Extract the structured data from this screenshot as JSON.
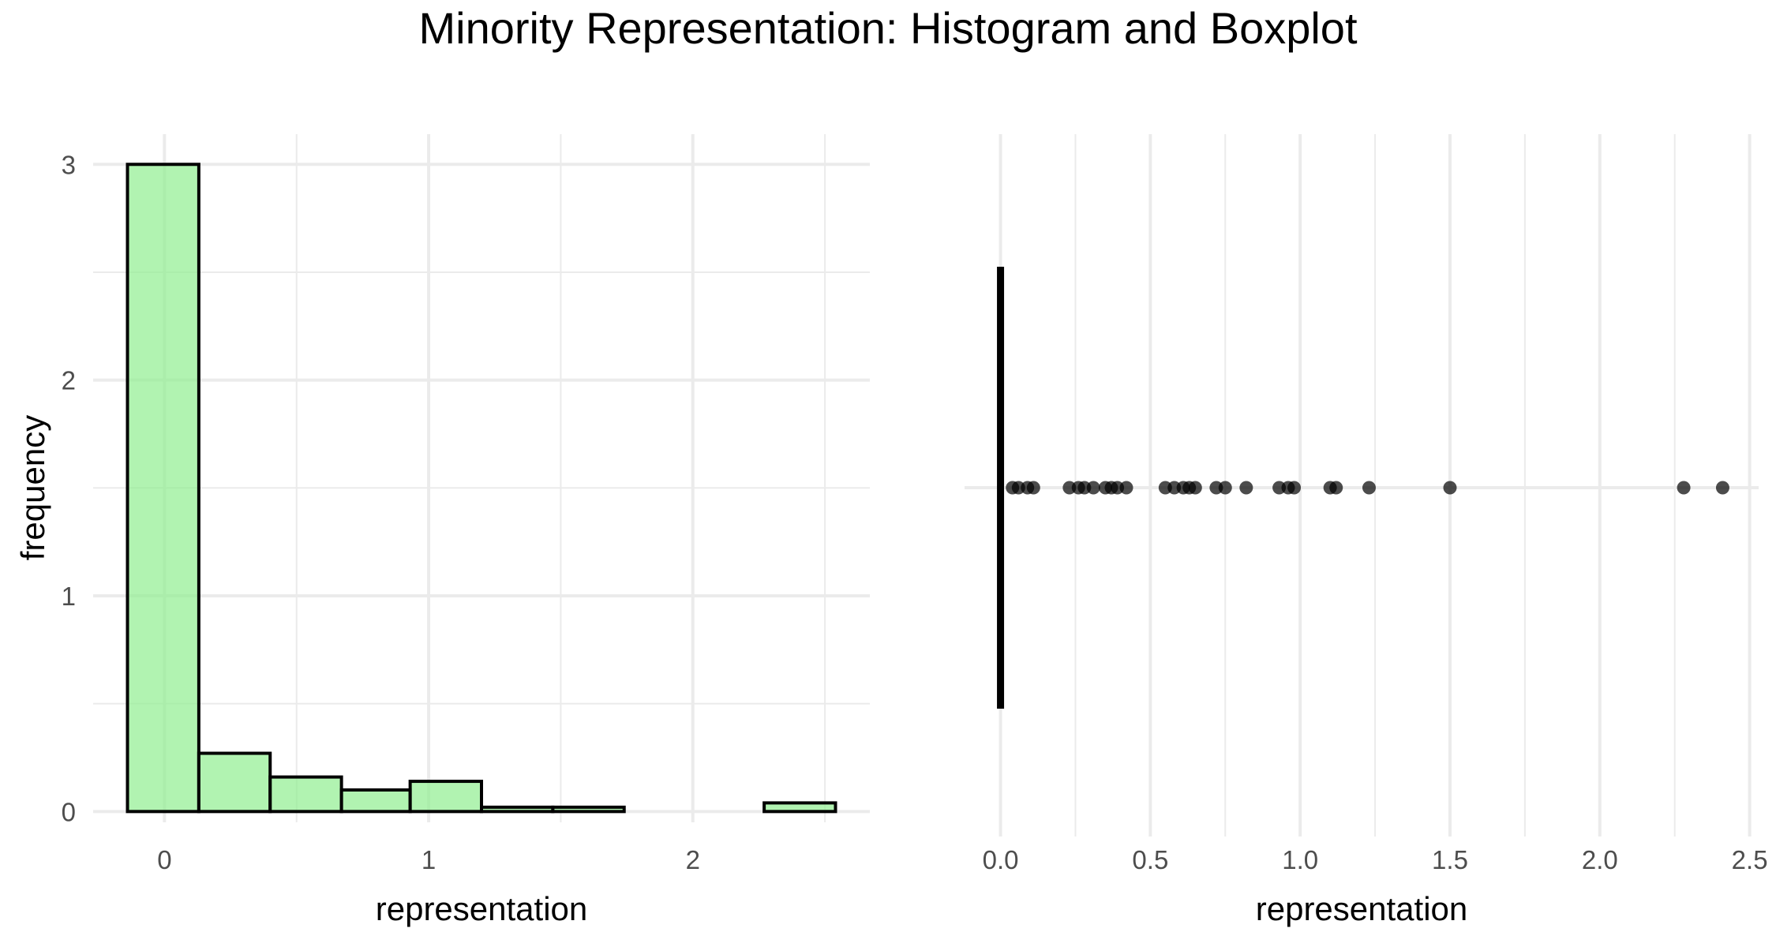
{
  "title": "Minority Representation: Histogram and Boxplot",
  "chart_data": [
    {
      "type": "bar",
      "subtype": "histogram",
      "xlabel": "representation",
      "ylabel": "frequency",
      "xlim": [
        -0.27,
        2.67
      ],
      "ylim": [
        -0.05,
        3.14
      ],
      "xticks": [
        "0",
        "1",
        "2"
      ],
      "xtick_values": [
        0,
        1,
        2
      ],
      "yticks": [
        "0",
        "1",
        "2",
        "3"
      ],
      "ytick_values": [
        0,
        1,
        2,
        3
      ],
      "bins": [
        {
          "x0": -0.14,
          "x1": 0.13,
          "value": 3.0
        },
        {
          "x0": 0.13,
          "x1": 0.4,
          "value": 0.27
        },
        {
          "x0": 0.4,
          "x1": 0.67,
          "value": 0.16
        },
        {
          "x0": 0.67,
          "x1": 0.93,
          "value": 0.1
        },
        {
          "x0": 0.93,
          "x1": 1.2,
          "value": 0.14
        },
        {
          "x0": 1.2,
          "x1": 1.47,
          "value": 0.02
        },
        {
          "x0": 1.47,
          "x1": 1.74,
          "value": 0.02
        },
        {
          "x0": 1.74,
          "x1": 2.01,
          "value": 0.0
        },
        {
          "x0": 2.01,
          "x1": 2.27,
          "value": 0.0
        },
        {
          "x0": 2.27,
          "x1": 2.54,
          "value": 0.04
        }
      ],
      "fill_color": "#90ee90",
      "grid": true
    },
    {
      "type": "scatter",
      "subtype": "boxplot",
      "xlabel": "representation",
      "xlim": [
        -0.12,
        2.53
      ],
      "xticks": [
        "0.0",
        "0.5",
        "1.0",
        "1.5",
        "2.0",
        "2.5"
      ],
      "xtick_values": [
        0,
        0.5,
        1.0,
        1.5,
        2.0,
        2.5
      ],
      "box": {
        "min": 0,
        "q1": 0,
        "median": 0,
        "q3": 0,
        "max": 0
      },
      "outliers": [
        0.04,
        0.06,
        0.09,
        0.11,
        0.23,
        0.26,
        0.28,
        0.31,
        0.35,
        0.37,
        0.39,
        0.42,
        0.55,
        0.58,
        0.61,
        0.63,
        0.65,
        0.72,
        0.75,
        0.82,
        0.93,
        0.96,
        0.98,
        1.1,
        1.12,
        1.23,
        1.5,
        2.28,
        2.41
      ],
      "point_color": "#000000",
      "grid": true
    }
  ]
}
